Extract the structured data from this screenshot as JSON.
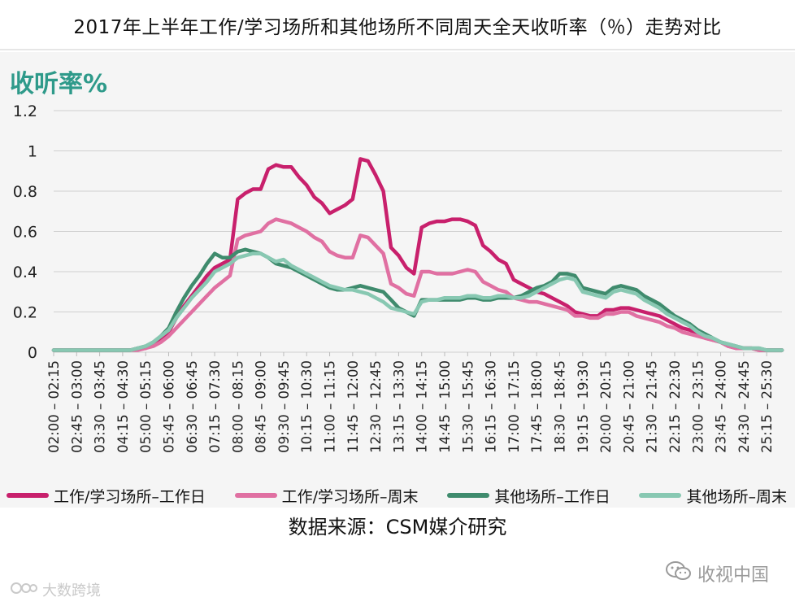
{
  "page": {
    "title": "2017年上半年工作/学习场所和其他场所不同周天全天收听率（％）走势对比",
    "y_unit_label": "收听率%",
    "source": "数据来源：CSM媒介研究",
    "watermark_left": "大数跨境",
    "watermark_right": "收视中国"
  },
  "colors": {
    "work_weekday": "#c8206c",
    "work_weekend": "#e070a2",
    "other_weekday": "#3f8b6d",
    "other_weekend": "#88c8b2",
    "unit_label": "#2e9a8a"
  },
  "chart_data": {
    "type": "line",
    "title": "2017年上半年工作/学习场所和其他场所不同周天全天收听率（％）走势对比",
    "ylabel": "收听率%",
    "ylim": [
      0,
      1.2
    ],
    "yticks": [
      "0",
      "0.2",
      "0.4",
      "0.6",
      "0.8",
      "1",
      "1.2"
    ],
    "ytick_values": [
      0,
      0.2,
      0.4,
      0.6,
      0.8,
      1,
      1.2
    ],
    "grid": true,
    "legend_position": "bottom",
    "x": [
      "02:00 – 02:15",
      "02:15 – 02:30",
      "02:30 – 02:45",
      "02:45 – 03:00",
      "03:00 – 03:15",
      "03:15 – 03:30",
      "03:30 – 03:45",
      "03:45 – 04:00",
      "04:00 – 04:15",
      "04:15 – 04:30",
      "04:30 – 04:45",
      "04:45 – 05:00",
      "05:00 – 05:15",
      "05:15 – 05:30",
      "05:30 – 05:45",
      "05:45 – 06:00",
      "06:00 – 06:15",
      "06:15 – 06:30",
      "06:30 – 06:45",
      "06:45 – 07:00",
      "07:00 – 07:15",
      "07:15 – 07:30",
      "07:30 – 07:45",
      "07:45 – 08:00",
      "08:00 – 08:15",
      "08:15 – 08:30",
      "08:30 – 08:45",
      "08:45 – 09:00",
      "09:00 – 09:15",
      "09:15 – 09:30",
      "09:30 – 09:45",
      "09:45 – 10:00",
      "10:00 – 10:15",
      "10:15 – 10:30",
      "10:30 – 10:45",
      "10:45 – 11:00",
      "11:00 – 11:15",
      "11:15 – 11:30",
      "11:30 – 11:45",
      "11:45 – 12:00",
      "12:00 – 12:15",
      "12:15 – 12:30",
      "12:30 – 12:45",
      "12:45 – 13:00",
      "13:00 – 13:15",
      "13:15 – 13:30",
      "13:30 – 13:45",
      "13:45 – 14:00",
      "14:00 – 14:15",
      "14:15 – 14:30",
      "14:30 – 14:45",
      "14:45 – 15:00",
      "15:00 – 15:15",
      "15:15 – 15:30",
      "15:30 – 15:45",
      "15:45 – 16:00",
      "16:00 – 16:15",
      "16:15 – 16:30",
      "16:30 – 16:45",
      "16:45 – 17:00",
      "17:00 – 17:15",
      "17:15 – 17:30",
      "17:30 – 17:45",
      "17:45 – 18:00",
      "18:00 – 18:15",
      "18:15 – 18:30",
      "18:30 – 18:45",
      "18:45 – 19:00",
      "19:00 – 19:15",
      "19:15 – 19:30",
      "19:30 – 19:45",
      "19:45 – 20:00",
      "20:00 – 20:15",
      "20:15 – 20:30",
      "20:30 – 20:45",
      "20:45 – 21:00",
      "21:00 – 21:15",
      "21:15 – 21:30",
      "21:30 – 21:45",
      "21:45 – 22:00",
      "22:00 – 22:15",
      "22:15 – 22:30",
      "22:30 – 22:45",
      "22:45 – 23:00",
      "23:00 – 23:15",
      "23:15 – 23:30",
      "23:30 – 23:45",
      "23:45 – 24:00",
      "24:00 – 24:15",
      "24:15 – 24:30",
      "24:30 – 24:45",
      "24:45 – 25:00",
      "25:00 – 25:15",
      "25:15 – 25:30",
      "25:30 – 25:45",
      "25:45 – 26:00"
    ],
    "xtick_labels": [
      "02:00 – 02:15",
      "02:45 – 03:00",
      "03:30 – 03:45",
      "04:15 – 04:30",
      "05:00 – 05:15",
      "05:45 – 06:00",
      "06:30 – 06:45",
      "07:15 – 07:30",
      "08:00 – 08:15",
      "08:45 – 09:00",
      "09:30 – 09:45",
      "10:15 – 10:30",
      "11:00 – 11:15",
      "11:45 – 12:00",
      "12:30 – 12:45",
      "13:15 – 13:30",
      "14:00 – 14:15",
      "14:45 – 15:00",
      "15:30 – 15:45",
      "16:15 – 16:30",
      "17:00 – 17:15",
      "17:45 – 18:00",
      "18:30 – 18:45",
      "19:15 – 19:30",
      "20:00 – 20:15",
      "20:45 – 21:00",
      "21:30 – 21:45",
      "22:15 – 22:30",
      "23:00 – 23:15",
      "23:45 – 24:00",
      "24:30 – 24:45",
      "25:15 – 25:30"
    ],
    "series": [
      {
        "name": "工作/学习场所–工作日",
        "color": "#c8206c",
        "values": [
          0.01,
          0.01,
          0.01,
          0.01,
          0.01,
          0.01,
          0.01,
          0.01,
          0.01,
          0.01,
          0.01,
          0.02,
          0.02,
          0.04,
          0.06,
          0.1,
          0.17,
          0.23,
          0.28,
          0.33,
          0.38,
          0.42,
          0.44,
          0.46,
          0.76,
          0.79,
          0.81,
          0.81,
          0.91,
          0.93,
          0.92,
          0.92,
          0.87,
          0.83,
          0.77,
          0.74,
          0.69,
          0.71,
          0.73,
          0.76,
          0.96,
          0.95,
          0.88,
          0.8,
          0.52,
          0.48,
          0.42,
          0.39,
          0.62,
          0.64,
          0.65,
          0.65,
          0.66,
          0.66,
          0.65,
          0.63,
          0.53,
          0.5,
          0.46,
          0.44,
          0.36,
          0.34,
          0.32,
          0.3,
          0.29,
          0.27,
          0.25,
          0.23,
          0.2,
          0.19,
          0.18,
          0.18,
          0.21,
          0.21,
          0.22,
          0.22,
          0.21,
          0.2,
          0.19,
          0.18,
          0.16,
          0.14,
          0.12,
          0.11,
          0.09,
          0.07,
          0.06,
          0.05,
          0.03,
          0.02,
          0.02,
          0.02,
          0.01,
          0.01,
          0.01,
          0.01
        ]
      },
      {
        "name": "工作/学习场所–周末",
        "color": "#e070a2",
        "values": [
          0.01,
          0.01,
          0.01,
          0.01,
          0.01,
          0.01,
          0.01,
          0.01,
          0.01,
          0.01,
          0.01,
          0.01,
          0.02,
          0.03,
          0.05,
          0.08,
          0.12,
          0.16,
          0.2,
          0.24,
          0.28,
          0.32,
          0.35,
          0.38,
          0.56,
          0.58,
          0.59,
          0.6,
          0.64,
          0.66,
          0.65,
          0.64,
          0.62,
          0.6,
          0.57,
          0.55,
          0.5,
          0.48,
          0.47,
          0.47,
          0.58,
          0.57,
          0.53,
          0.49,
          0.34,
          0.32,
          0.29,
          0.28,
          0.4,
          0.4,
          0.39,
          0.39,
          0.39,
          0.4,
          0.41,
          0.4,
          0.35,
          0.33,
          0.31,
          0.3,
          0.27,
          0.26,
          0.25,
          0.25,
          0.24,
          0.23,
          0.22,
          0.21,
          0.18,
          0.18,
          0.17,
          0.17,
          0.19,
          0.19,
          0.2,
          0.2,
          0.18,
          0.17,
          0.16,
          0.15,
          0.13,
          0.12,
          0.1,
          0.09,
          0.08,
          0.07,
          0.06,
          0.05,
          0.03,
          0.02,
          0.02,
          0.02,
          0.01,
          0.01,
          0.01,
          0.01
        ]
      },
      {
        "name": "其他场所–工作日",
        "color": "#3f8b6d",
        "values": [
          0.01,
          0.01,
          0.01,
          0.01,
          0.01,
          0.01,
          0.01,
          0.01,
          0.01,
          0.01,
          0.01,
          0.02,
          0.03,
          0.05,
          0.08,
          0.12,
          0.2,
          0.27,
          0.33,
          0.38,
          0.44,
          0.49,
          0.47,
          0.47,
          0.5,
          0.51,
          0.5,
          0.49,
          0.47,
          0.44,
          0.43,
          0.42,
          0.4,
          0.38,
          0.36,
          0.34,
          0.32,
          0.31,
          0.31,
          0.32,
          0.33,
          0.32,
          0.31,
          0.3,
          0.26,
          0.22,
          0.2,
          0.18,
          0.26,
          0.26,
          0.26,
          0.26,
          0.26,
          0.26,
          0.27,
          0.27,
          0.26,
          0.26,
          0.27,
          0.27,
          0.27,
          0.28,
          0.3,
          0.32,
          0.33,
          0.35,
          0.39,
          0.39,
          0.38,
          0.32,
          0.31,
          0.3,
          0.29,
          0.32,
          0.33,
          0.32,
          0.31,
          0.28,
          0.26,
          0.24,
          0.21,
          0.18,
          0.16,
          0.14,
          0.11,
          0.09,
          0.07,
          0.05,
          0.04,
          0.03,
          0.02,
          0.02,
          0.02,
          0.01,
          0.01,
          0.01
        ]
      },
      {
        "name": "其他场所–周末",
        "color": "#88c8b2",
        "values": [
          0.01,
          0.01,
          0.01,
          0.01,
          0.01,
          0.01,
          0.01,
          0.01,
          0.01,
          0.01,
          0.01,
          0.02,
          0.03,
          0.05,
          0.08,
          0.11,
          0.17,
          0.22,
          0.27,
          0.31,
          0.35,
          0.4,
          0.42,
          0.44,
          0.47,
          0.48,
          0.49,
          0.49,
          0.47,
          0.45,
          0.46,
          0.43,
          0.41,
          0.39,
          0.37,
          0.35,
          0.33,
          0.32,
          0.31,
          0.31,
          0.3,
          0.29,
          0.27,
          0.25,
          0.22,
          0.21,
          0.2,
          0.19,
          0.25,
          0.26,
          0.26,
          0.27,
          0.27,
          0.27,
          0.28,
          0.28,
          0.27,
          0.27,
          0.28,
          0.28,
          0.27,
          0.27,
          0.28,
          0.3,
          0.32,
          0.34,
          0.36,
          0.37,
          0.36,
          0.3,
          0.29,
          0.28,
          0.27,
          0.3,
          0.31,
          0.3,
          0.29,
          0.26,
          0.24,
          0.22,
          0.19,
          0.17,
          0.15,
          0.13,
          0.1,
          0.08,
          0.07,
          0.05,
          0.04,
          0.03,
          0.02,
          0.02,
          0.02,
          0.01,
          0.01,
          0.01
        ]
      }
    ]
  }
}
